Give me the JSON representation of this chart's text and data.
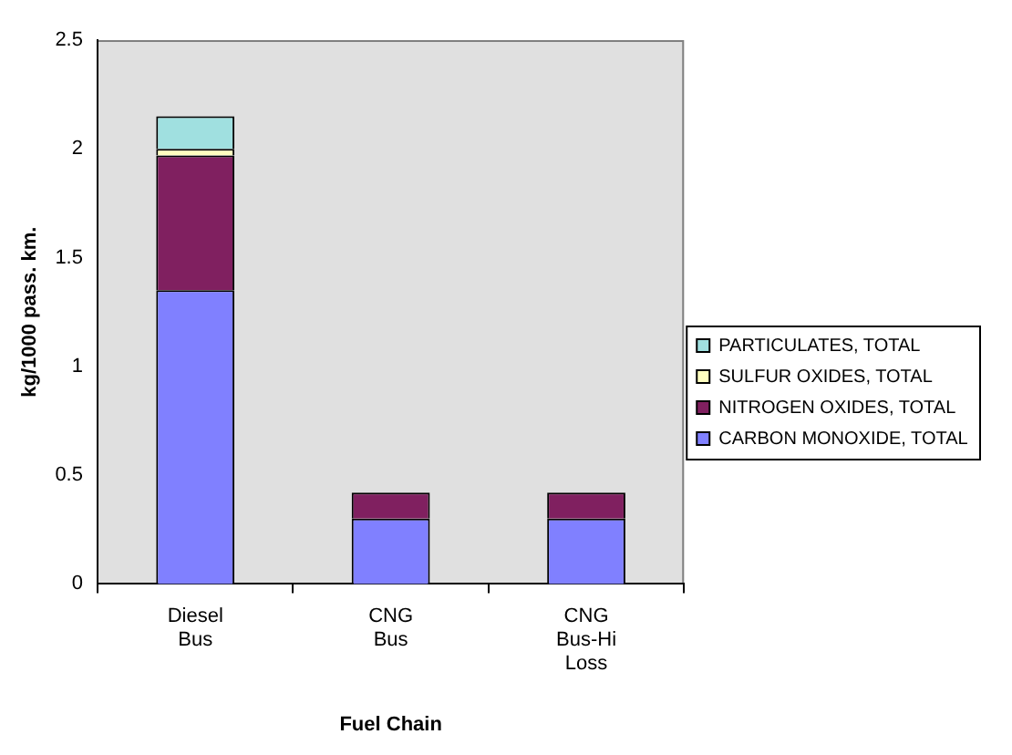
{
  "chart_data": {
    "type": "bar",
    "stacked": true,
    "xlabel": "Fuel Chain",
    "ylabel": "kg/1000 pass. km.",
    "categories": [
      "Diesel Bus",
      "CNG Bus",
      "CNG Bus-Hi Loss"
    ],
    "series": [
      {
        "name": "CARBON MONOXIDE, TOTAL",
        "color": "#8080ff",
        "values": [
          1.35,
          0.3,
          0.3
        ]
      },
      {
        "name": "NITROGEN OXIDES, TOTAL",
        "color": "#802060",
        "values": [
          0.62,
          0.12,
          0.12
        ]
      },
      {
        "name": "SULFUR OXIDES, TOTAL",
        "color": "#ffffc0",
        "values": [
          0.03,
          0,
          0
        ]
      },
      {
        "name": "PARTICULATES, TOTAL",
        "color": "#a0e0e0",
        "values": [
          0.15,
          0,
          0
        ]
      }
    ],
    "ylim": [
      0,
      2.5
    ],
    "yticks": [
      0,
      0.5,
      1,
      1.5,
      2,
      2.5
    ],
    "grid": false,
    "legend": "right"
  }
}
